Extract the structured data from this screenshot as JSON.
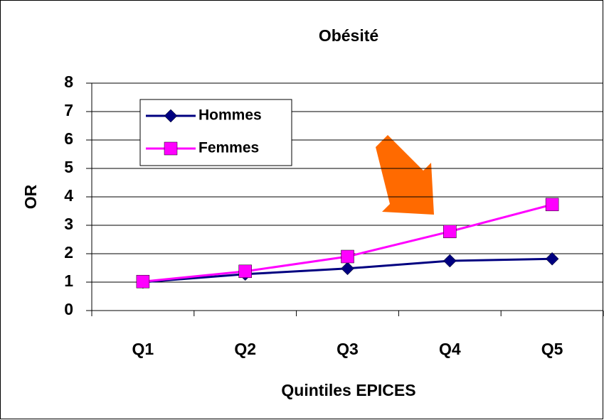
{
  "chart_data": {
    "type": "line",
    "title": "Obésité",
    "xlabel": "Quintiles EPICES",
    "ylabel": "OR",
    "categories": [
      "Q1",
      "Q2",
      "Q3",
      "Q4",
      "Q5"
    ],
    "series": [
      {
        "name": "Hommes",
        "color": "#000080",
        "marker": "diamond",
        "values": [
          1.0,
          1.28,
          1.48,
          1.75,
          1.82
        ]
      },
      {
        "name": "Femmes",
        "color": "#ff00ff",
        "marker": "square",
        "values": [
          1.02,
          1.38,
          1.9,
          2.78,
          3.73
        ]
      }
    ],
    "ylim": [
      0,
      8
    ],
    "yticks": [
      0,
      1,
      2,
      3,
      4,
      5,
      6,
      7,
      8
    ],
    "grid": true,
    "legend": "upper left"
  }
}
